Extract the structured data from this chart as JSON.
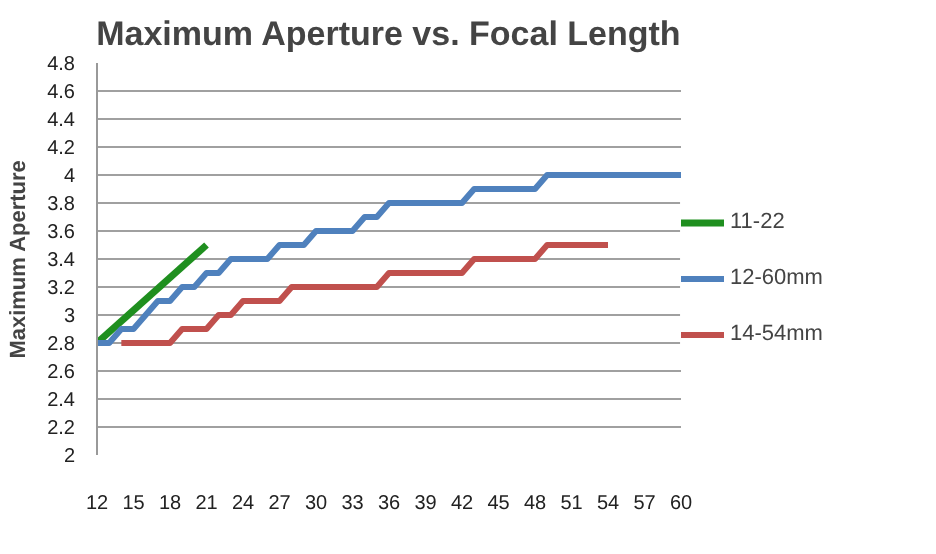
{
  "chart_data": {
    "type": "line",
    "title": "Maximum Aperture vs. Focal Length",
    "ylabel": "Maximum Aperture",
    "ylim": [
      2,
      4.8
    ],
    "yticks": [
      2,
      2.2,
      2.4,
      2.6,
      2.8,
      3,
      3.2,
      3.4,
      3.6,
      3.8,
      4,
      4.2,
      4.4,
      4.6,
      4.8
    ],
    "xlim": [
      12,
      60
    ],
    "xticks": [
      12,
      15,
      18,
      21,
      24,
      27,
      30,
      33,
      36,
      39,
      42,
      45,
      48,
      51,
      54,
      57,
      60
    ],
    "grid": "y",
    "legend": "right",
    "series": [
      {
        "name": "11-22",
        "color": "#1f8f1f",
        "x": [
          12,
          21
        ],
        "values": [
          2.8,
          3.5
        ]
      },
      {
        "name": "12-60mm",
        "color": "#4f81bd",
        "x": [
          12,
          13,
          14,
          15,
          16,
          17,
          18,
          19,
          20,
          21,
          22,
          23,
          24,
          25,
          26,
          27,
          28,
          29,
          30,
          31,
          32,
          33,
          34,
          35,
          36,
          37,
          38,
          39,
          40,
          41,
          42,
          43,
          44,
          45,
          46,
          47,
          48,
          49,
          50,
          51,
          52,
          53,
          54,
          55,
          56,
          57,
          58,
          59,
          60
        ],
        "values": [
          2.8,
          2.8,
          2.9,
          2.9,
          3.0,
          3.1,
          3.1,
          3.2,
          3.2,
          3.3,
          3.3,
          3.4,
          3.4,
          3.4,
          3.4,
          3.5,
          3.5,
          3.5,
          3.6,
          3.6,
          3.6,
          3.6,
          3.7,
          3.7,
          3.8,
          3.8,
          3.8,
          3.8,
          3.8,
          3.8,
          3.8,
          3.9,
          3.9,
          3.9,
          3.9,
          3.9,
          3.9,
          4.0,
          4.0,
          4.0,
          4.0,
          4.0,
          4.0,
          4.0,
          4.0,
          4.0,
          4.0,
          4.0,
          4.0
        ]
      },
      {
        "name": "14-54mm",
        "color": "#c0504d",
        "x": [
          14,
          15,
          16,
          17,
          18,
          19,
          20,
          21,
          22,
          23,
          24,
          25,
          26,
          27,
          28,
          29,
          30,
          31,
          32,
          33,
          34,
          35,
          36,
          37,
          38,
          39,
          40,
          41,
          42,
          43,
          44,
          45,
          46,
          47,
          48,
          49,
          50,
          51,
          52,
          53,
          54
        ],
        "values": [
          2.8,
          2.8,
          2.8,
          2.8,
          2.8,
          2.9,
          2.9,
          2.9,
          3.0,
          3.0,
          3.1,
          3.1,
          3.1,
          3.1,
          3.2,
          3.2,
          3.2,
          3.2,
          3.2,
          3.2,
          3.2,
          3.2,
          3.3,
          3.3,
          3.3,
          3.3,
          3.3,
          3.3,
          3.3,
          3.4,
          3.4,
          3.4,
          3.4,
          3.4,
          3.4,
          3.5,
          3.5,
          3.5,
          3.5,
          3.5,
          3.5
        ]
      }
    ]
  }
}
